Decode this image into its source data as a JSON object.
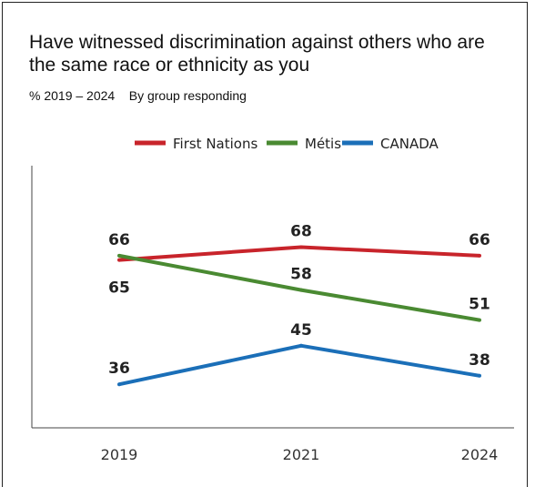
{
  "title": "Have witnessed discrimination against others who are the same race or ethnicity as you",
  "subtitle": "% 2019 – 2024    By group responding",
  "chart_data": {
    "type": "line",
    "title": "Have witnessed discrimination against others who are the same race or ethnicity as you",
    "subtitle": "% 2019 – 2024    By group responding",
    "x": [
      "2019",
      "2021",
      "2024"
    ],
    "ylim": [
      25,
      80
    ],
    "grid": false,
    "legend": "top-center",
    "series": [
      {
        "name": "First Nations",
        "color": "#c8242b",
        "values": [
          65,
          68,
          66
        ]
      },
      {
        "name": "Métis",
        "color": "#4a8a32",
        "values": [
          66,
          58,
          51
        ]
      },
      {
        "name": "CANADA",
        "color": "#1b6fb8",
        "values": [
          36,
          45,
          38
        ]
      }
    ]
  }
}
